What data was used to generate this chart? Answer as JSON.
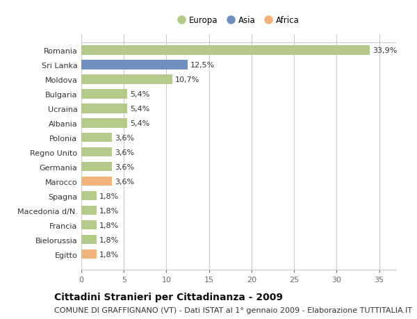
{
  "categories": [
    "Romania",
    "Sri Lanka",
    "Moldova",
    "Bulgaria",
    "Ucraina",
    "Albania",
    "Polonia",
    "Regno Unito",
    "Germania",
    "Marocco",
    "Spagna",
    "Macedonia d/N.",
    "Francia",
    "Bielorussia",
    "Egitto"
  ],
  "values": [
    33.9,
    12.5,
    10.7,
    5.4,
    5.4,
    5.4,
    3.6,
    3.6,
    3.6,
    3.6,
    1.8,
    1.8,
    1.8,
    1.8,
    1.8
  ],
  "labels": [
    "33,9%",
    "12,5%",
    "10,7%",
    "5,4%",
    "5,4%",
    "5,4%",
    "3,6%",
    "3,6%",
    "3,6%",
    "3,6%",
    "1,8%",
    "1,8%",
    "1,8%",
    "1,8%",
    "1,8%"
  ],
  "continents": [
    "Europa",
    "Asia",
    "Europa",
    "Europa",
    "Europa",
    "Europa",
    "Europa",
    "Europa",
    "Europa",
    "Africa",
    "Europa",
    "Europa",
    "Europa",
    "Europa",
    "Africa"
  ],
  "colors": {
    "Europa": "#b5c98a",
    "Asia": "#7090bf",
    "Africa": "#f0b47a"
  },
  "xlim": [
    0,
    37
  ],
  "xticks": [
    0,
    5,
    10,
    15,
    20,
    25,
    30,
    35
  ],
  "background_color": "#ffffff",
  "plot_bg_color": "#ffffff",
  "grid_color": "#cccccc",
  "title": "Cittadini Stranieri per Cittadinanza - 2009",
  "subtitle": "COMUNE DI GRAFFIGNANO (VT) - Dati ISTAT al 1° gennaio 2009 - Elaborazione TUTTITALIA.IT",
  "title_fontsize": 10,
  "subtitle_fontsize": 8,
  "label_fontsize": 8,
  "tick_fontsize": 8,
  "bar_height": 0.65,
  "legend_labels": [
    "Europa",
    "Asia",
    "Africa"
  ],
  "legend_colors": [
    "#b5c98a",
    "#7090bf",
    "#f0b47a"
  ]
}
